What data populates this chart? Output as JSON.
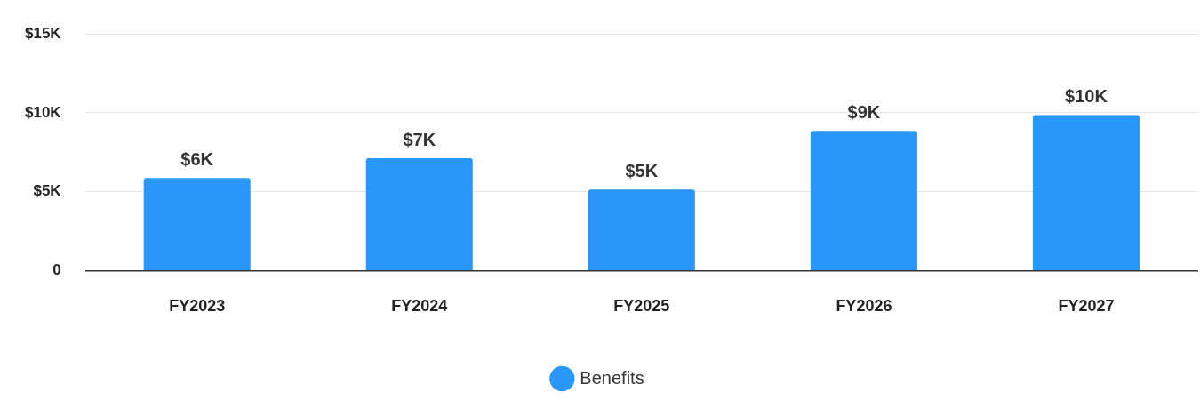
{
  "chart_data": {
    "type": "bar",
    "categories": [
      "FY2023",
      "FY2024",
      "FY2025",
      "FY2026",
      "FY2027"
    ],
    "series": [
      {
        "name": "Benefits",
        "color": "#2997fa",
        "values": [
          5870,
          7120,
          5140,
          8850,
          9860
        ],
        "value_labels": [
          "$6K",
          "$7K",
          "$5K",
          "$9K",
          "$10K"
        ]
      }
    ],
    "ylim": [
      0,
      15000
    ],
    "yticks": [
      {
        "value": 0,
        "label": "0"
      },
      {
        "value": 5000,
        "label": "$5K"
      },
      {
        "value": 10000,
        "label": "$10K"
      },
      {
        "value": 15000,
        "label": "$15K"
      }
    ],
    "grid": "y",
    "legend": "bottom"
  }
}
